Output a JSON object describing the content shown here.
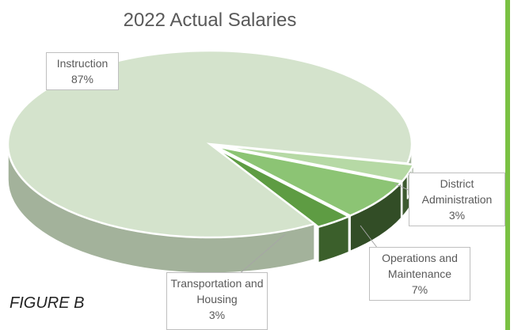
{
  "chart_data": {
    "type": "pie3d",
    "title": "2022 Actual Salaries",
    "categories": [
      "District Administration",
      "Operations and Maintenance",
      "Transportation and Housing",
      "Instruction"
    ],
    "values": [
      3,
      7,
      3,
      87
    ],
    "value_labels": [
      "3%",
      "7%",
      "3%",
      "87%"
    ],
    "colors": [
      "#b6d9a5",
      "#8cc474",
      "#5e9c43",
      "#d4e3cc"
    ],
    "side_colors": [
      "#3d5a30",
      "#324d26",
      "#3b5f2b",
      "#a3b29b"
    ]
  },
  "caption": "FIGURE B"
}
